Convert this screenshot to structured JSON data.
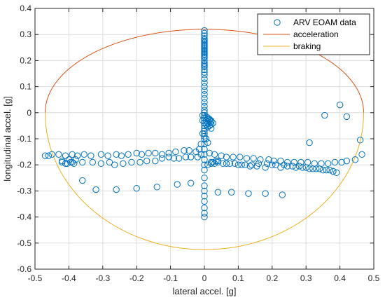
{
  "chart_data": {
    "type": "scatter",
    "xlabel": "lateral accel. [g]",
    "ylabel": "longitudinal accel. [g]",
    "xlim": [
      -0.5,
      0.5
    ],
    "ylim": [
      -0.6,
      0.4
    ],
    "xticks": [
      -0.5,
      -0.4,
      -0.3,
      -0.2,
      -0.1,
      0,
      0.1,
      0.2,
      0.3,
      0.4,
      0.5
    ],
    "yticks": [
      -0.6,
      -0.5,
      -0.4,
      -0.3,
      -0.2,
      -0.1,
      0,
      0.1,
      0.2,
      0.3,
      0.4
    ],
    "xtick_labels": [
      "-0.5",
      "-0.4",
      "-0.3",
      "-0.2",
      "-0.1",
      "0",
      "0.1",
      "0.2",
      "0.3",
      "0.4",
      "0.5"
    ],
    "ytick_labels": [
      "-0.6",
      "-0.5",
      "-0.4",
      "-0.3",
      "-0.2",
      "-0.1",
      "0",
      "0.1",
      "0.2",
      "0.3",
      "0.4"
    ],
    "grid": true,
    "legend_position": "top-right",
    "colors": {
      "data": "#0072BD",
      "acceleration": "#D95319",
      "braking": "#EDB120",
      "grid": "#dcdcdc",
      "axis": "#262626"
    },
    "series": [
      {
        "name": "ARV EOAM data",
        "kind": "scatter",
        "x": [
          0,
          0,
          0,
          0,
          0,
          0,
          0,
          0,
          0,
          0,
          0,
          0,
          0,
          0,
          0,
          0,
          0,
          0,
          0,
          0,
          0,
          0,
          0,
          0,
          0,
          0,
          0,
          0,
          0,
          0,
          0,
          0,
          0,
          0,
          0,
          0,
          0,
          0,
          0,
          0,
          0,
          0,
          0,
          0,
          0,
          0,
          0,
          0,
          0,
          0,
          0,
          0,
          0,
          0,
          0,
          0,
          0,
          0,
          0,
          0,
          0,
          0.005,
          0.005,
          0.01,
          0.01,
          0.01,
          0.015,
          0.015,
          0.02,
          0.02,
          0.02,
          0.005,
          0.01,
          0.015,
          0.02,
          0.025,
          -0.005,
          -0.005,
          -0.005,
          0.005,
          -0.01,
          0.01,
          -0.01,
          -0.015,
          0.015,
          -0.47,
          -0.46,
          -0.45,
          -0.43,
          -0.41,
          -0.39,
          -0.375,
          -0.355,
          -0.335,
          -0.305,
          -0.285,
          -0.26,
          -0.245,
          -0.225,
          -0.2,
          -0.185,
          -0.165,
          -0.145,
          -0.125,
          -0.105,
          -0.085,
          -0.06,
          -0.045,
          -0.025,
          -0.015,
          0.03,
          0.05,
          0.065,
          0.085,
          0.105,
          0.125,
          0.145,
          0.165,
          0.19,
          0.205,
          0.225,
          0.245,
          0.265,
          0.285,
          0.305,
          0.325,
          0.345,
          0.365,
          0.385,
          0.405,
          0.42,
          0.445,
          0.465,
          -0.42,
          -0.405,
          -0.385,
          -0.36,
          -0.33,
          -0.305,
          -0.28,
          -0.265,
          -0.24,
          -0.215,
          -0.19,
          -0.17,
          -0.145,
          -0.125,
          -0.105,
          -0.09,
          -0.075,
          -0.055,
          -0.04,
          -0.02,
          0.02,
          0.04,
          0.065,
          0.09,
          0.11,
          0.135,
          0.155,
          0.18,
          0.2,
          0.225,
          0.245,
          0.27,
          0.29,
          0.31,
          0.33,
          0.35,
          0.37,
          0.38,
          0.39,
          -0.42,
          -0.41,
          -0.395,
          -0.38,
          -0.4,
          -0.39,
          0.01,
          0.03,
          0.04,
          0.035,
          0.025,
          0.02,
          0.055,
          0.075,
          0.1,
          0.12,
          0.14,
          0.16,
          0.185,
          0.21,
          0.235,
          0.26,
          0.28,
          0.3,
          0.32,
          0.34,
          0.36,
          0.38,
          -0.36,
          -0.32,
          -0.26,
          -0.2,
          -0.14,
          -0.08,
          -0.04,
          0.04,
          0.08,
          0.13,
          0.18,
          0.23,
          0.31,
          0.355,
          0.4,
          0.42,
          0.46
        ],
        "y": [
          0.315,
          0.305,
          0.295,
          0.285,
          0.28,
          0.275,
          0.27,
          0.265,
          0.26,
          0.255,
          0.25,
          0.245,
          0.24,
          0.235,
          0.23,
          0.225,
          0.22,
          0.215,
          0.21,
          0.2,
          0.19,
          0.185,
          0.18,
          0.175,
          0.165,
          0.155,
          0.145,
          0.13,
          0.115,
          0.1,
          0.085,
          0.07,
          0.055,
          0.04,
          0.025,
          0.01,
          0,
          -0.01,
          -0.02,
          -0.03,
          -0.04,
          -0.05,
          -0.06,
          -0.07,
          -0.08,
          -0.09,
          -0.1,
          -0.12,
          -0.14,
          -0.16,
          -0.18,
          -0.2,
          -0.22,
          -0.25,
          -0.28,
          -0.3,
          -0.32,
          -0.34,
          -0.365,
          -0.385,
          -0.4,
          -0.03,
          -0.045,
          -0.025,
          -0.04,
          -0.055,
          -0.03,
          -0.05,
          -0.035,
          -0.045,
          -0.06,
          -0.015,
          -0.02,
          -0.025,
          -0.03,
          -0.04,
          -0.01,
          -0.03,
          -0.08,
          -0.1,
          -0.12,
          -0.115,
          -0.16,
          -0.14,
          -0.155,
          -0.165,
          -0.165,
          -0.16,
          -0.16,
          -0.165,
          -0.16,
          -0.165,
          -0.16,
          -0.165,
          -0.16,
          -0.165,
          -0.16,
          -0.165,
          -0.16,
          -0.155,
          -0.16,
          -0.155,
          -0.155,
          -0.16,
          -0.155,
          -0.15,
          -0.145,
          -0.145,
          -0.15,
          -0.14,
          -0.16,
          -0.165,
          -0.17,
          -0.17,
          -0.17,
          -0.175,
          -0.175,
          -0.18,
          -0.18,
          -0.185,
          -0.185,
          -0.19,
          -0.19,
          -0.19,
          -0.19,
          -0.195,
          -0.195,
          -0.195,
          -0.19,
          -0.19,
          -0.185,
          -0.18,
          -0.16,
          -0.19,
          -0.195,
          -0.195,
          -0.19,
          -0.19,
          -0.195,
          -0.19,
          -0.2,
          -0.195,
          -0.19,
          -0.19,
          -0.185,
          -0.185,
          -0.175,
          -0.17,
          -0.175,
          -0.175,
          -0.17,
          -0.17,
          -0.17,
          -0.19,
          -0.19,
          -0.195,
          -0.195,
          -0.2,
          -0.205,
          -0.205,
          -0.21,
          -0.2,
          -0.21,
          -0.205,
          -0.21,
          -0.21,
          -0.215,
          -0.215,
          -0.22,
          -0.22,
          -0.225,
          -0.23,
          -0.185,
          -0.195,
          -0.19,
          -0.18,
          -0.18,
          -0.19,
          -0.2,
          -0.195,
          -0.185,
          -0.185,
          -0.19,
          -0.195,
          -0.195,
          -0.195,
          -0.2,
          -0.2,
          -0.2,
          -0.195,
          -0.195,
          -0.2,
          -0.2,
          -0.205,
          -0.205,
          -0.21,
          -0.215,
          -0.215,
          -0.22,
          -0.225,
          -0.26,
          -0.295,
          -0.295,
          -0.29,
          -0.285,
          -0.275,
          -0.27,
          -0.305,
          -0.305,
          -0.31,
          -0.31,
          -0.315,
          -0.115,
          -0.01,
          0.03,
          -0.015,
          -0.105
        ]
      },
      {
        "name": "acceleration",
        "kind": "line",
        "shape": "half-ellipse",
        "cx": 0,
        "cy": 0,
        "rx": 0.47,
        "ry": 0.32
      },
      {
        "name": "braking",
        "kind": "line",
        "shape": "half-ellipse",
        "cx": 0,
        "cy": 0,
        "rx": 0.47,
        "ry": 0.525
      }
    ]
  }
}
